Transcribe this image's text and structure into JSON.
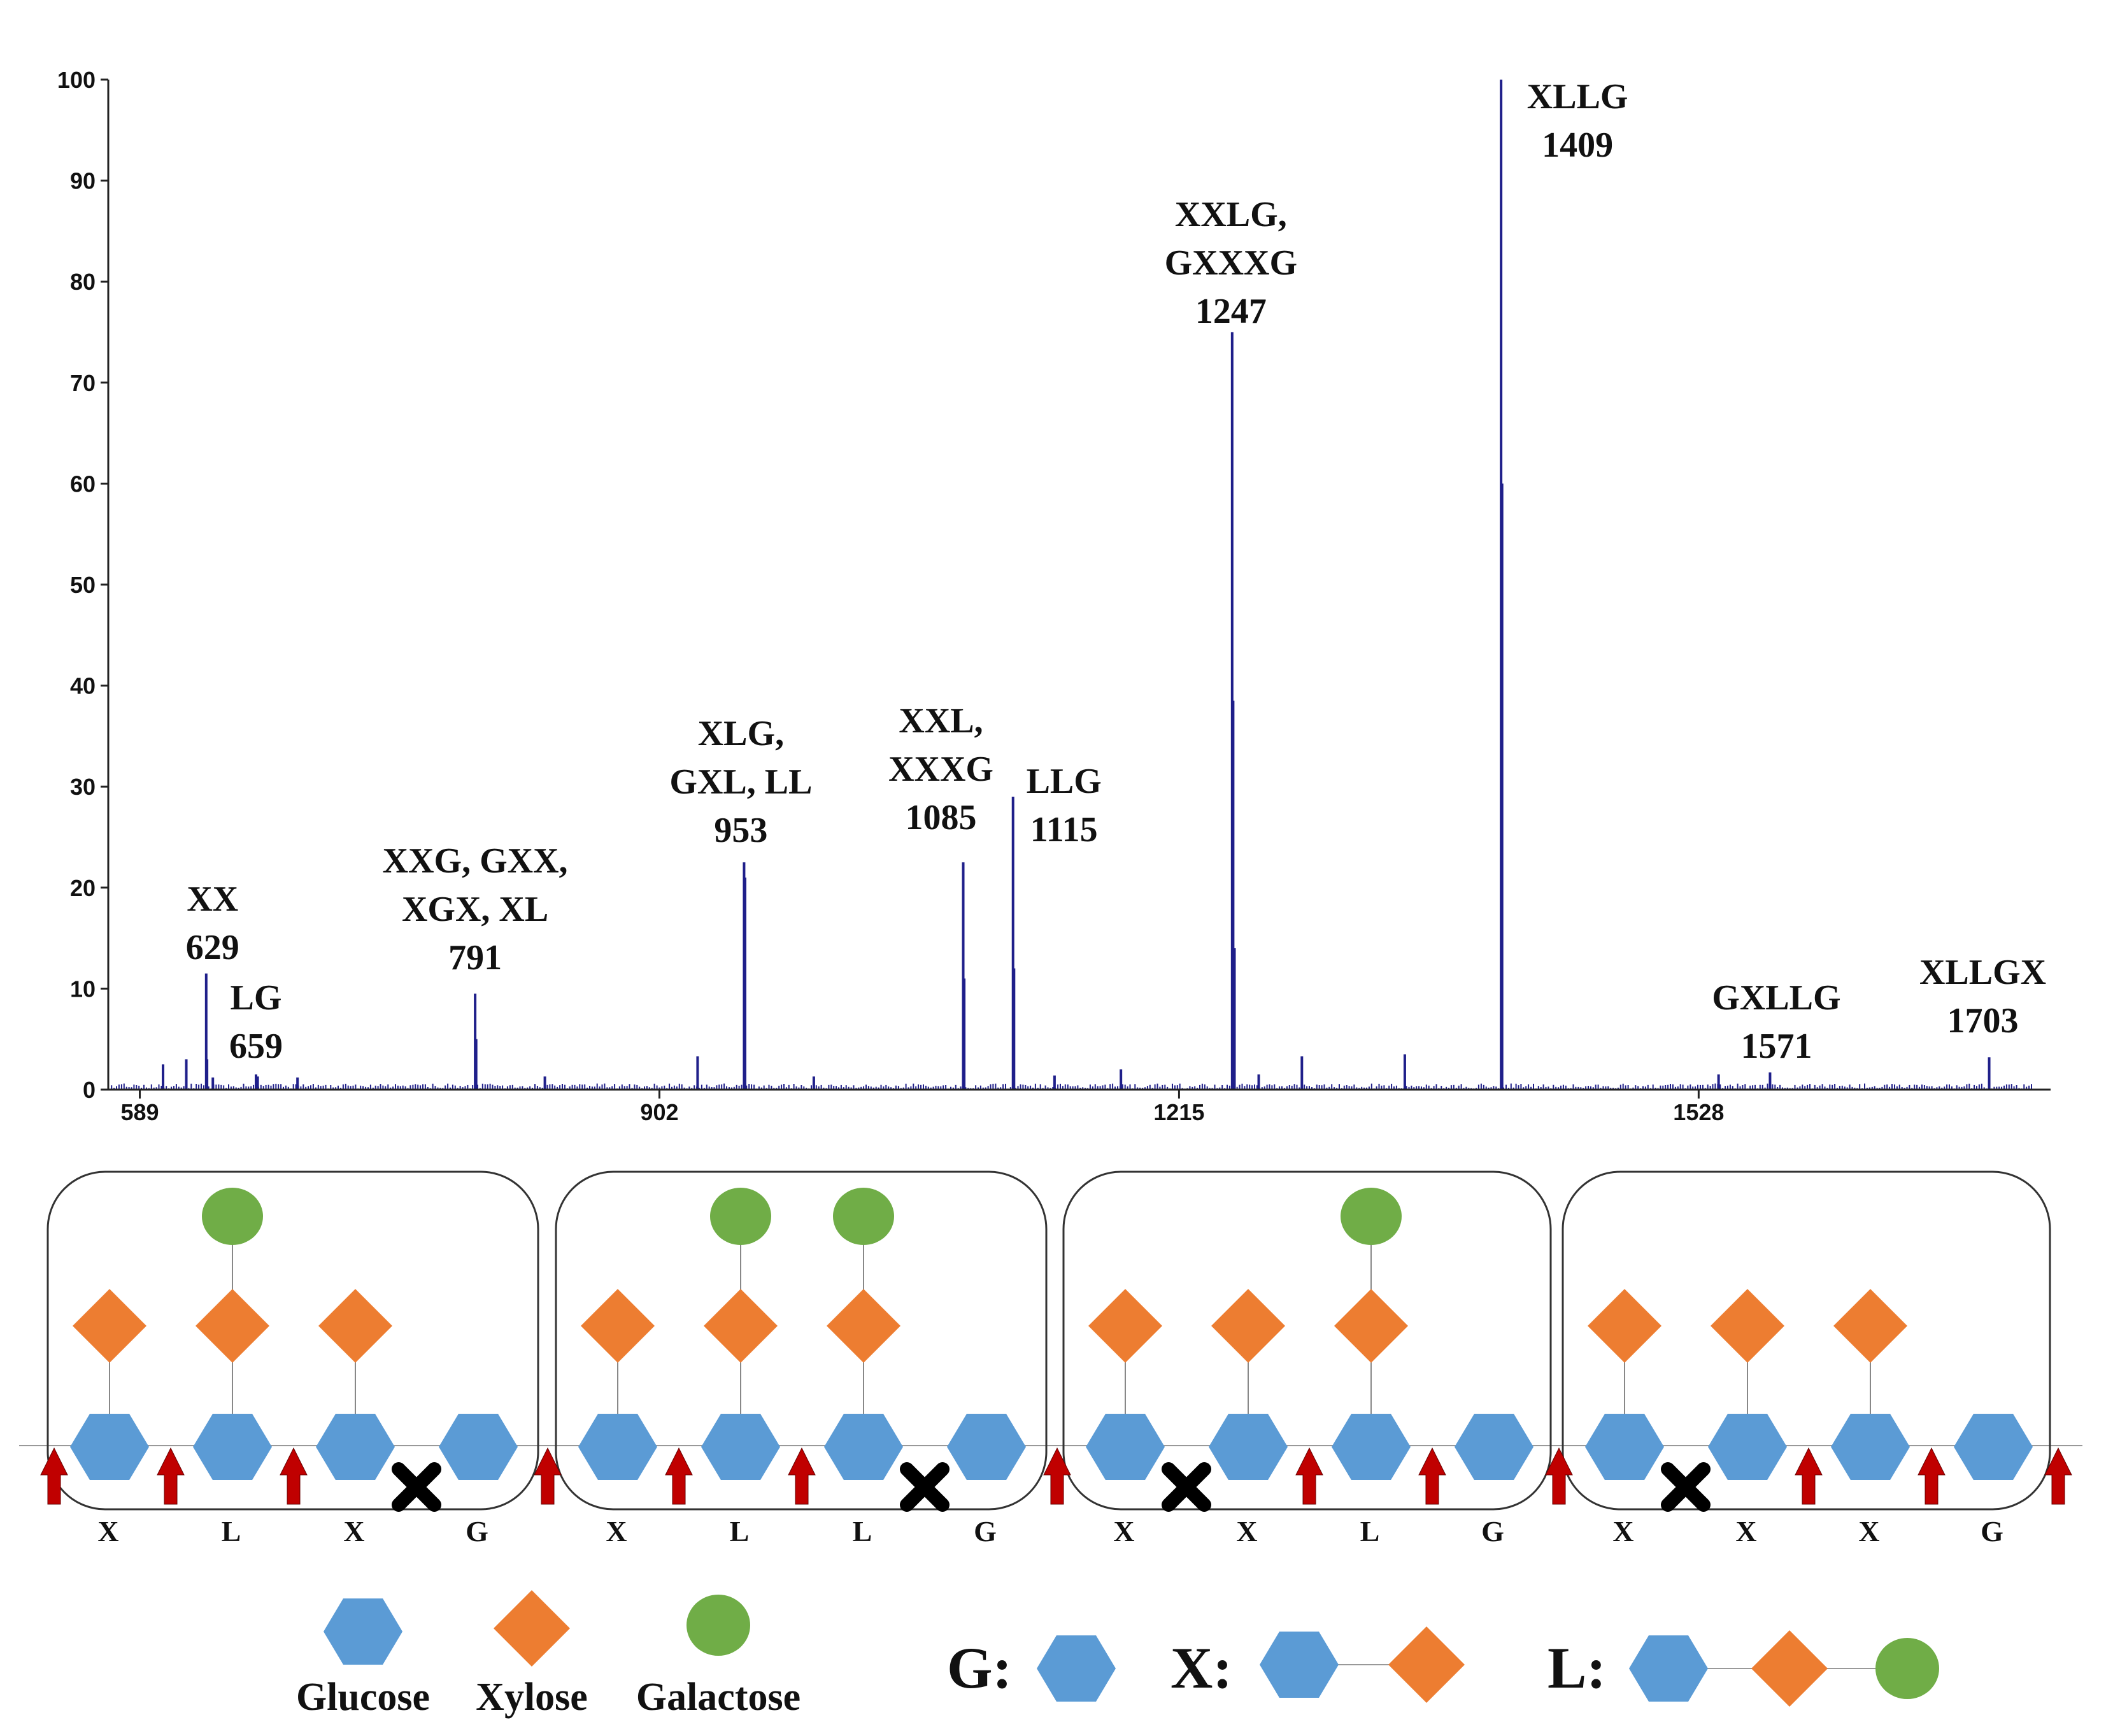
{
  "colors": {
    "spectrum": "#1f1f8a",
    "glucose": "#5b9bd5",
    "xylose": "#ed7d31",
    "galactose": "#70ad47",
    "cleavage_arrow": "#c00000",
    "blocked": "#000000"
  },
  "chart_data": {
    "type": "mass-spectrum",
    "xlim": [
      570,
      1740
    ],
    "ylim": [
      0,
      100
    ],
    "x_ticks": [
      "589",
      "902",
      "1215",
      "1528"
    ],
    "y_ticks": [
      "0",
      "10",
      "20",
      "30",
      "40",
      "50",
      "60",
      "70",
      "80",
      "90",
      "100"
    ],
    "peaks": [
      {
        "mz": 629,
        "intensity": 11.5
      },
      {
        "mz": 629.5,
        "intensity": 3
      },
      {
        "mz": 659,
        "intensity": 1.5
      },
      {
        "mz": 791,
        "intensity": 9.5
      },
      {
        "mz": 791.6,
        "intensity": 5
      },
      {
        "mz": 953,
        "intensity": 22.5
      },
      {
        "mz": 953.6,
        "intensity": 21
      },
      {
        "mz": 1085,
        "intensity": 22.5
      },
      {
        "mz": 1085.6,
        "intensity": 11
      },
      {
        "mz": 1115,
        "intensity": 29
      },
      {
        "mz": 1115.6,
        "intensity": 12
      },
      {
        "mz": 1247,
        "intensity": 75
      },
      {
        "mz": 1247.6,
        "intensity": 38.5
      },
      {
        "mz": 1248.4,
        "intensity": 14
      },
      {
        "mz": 1409,
        "intensity": 100
      },
      {
        "mz": 1409.6,
        "intensity": 60
      },
      {
        "mz": 1571,
        "intensity": 1.7
      },
      {
        "mz": 1703,
        "intensity": 3.2
      },
      {
        "mz": 603,
        "intensity": 2.5
      },
      {
        "mz": 617,
        "intensity": 3
      },
      {
        "mz": 633,
        "intensity": 1.2
      },
      {
        "mz": 660,
        "intensity": 1.3
      },
      {
        "mz": 684,
        "intensity": 1.2
      },
      {
        "mz": 833,
        "intensity": 1.3
      },
      {
        "mz": 925,
        "intensity": 3.3
      },
      {
        "mz": 995,
        "intensity": 1.3
      },
      {
        "mz": 1140,
        "intensity": 1.4
      },
      {
        "mz": 1180,
        "intensity": 2
      },
      {
        "mz": 1289,
        "intensity": 3.3
      },
      {
        "mz": 1351,
        "intensity": 3.5
      },
      {
        "mz": 1540,
        "intensity": 1.5
      },
      {
        "mz": 1263,
        "intensity": 1.5
      }
    ],
    "annotations": [
      {
        "mz": 629,
        "lines": [
          "XX",
          "629"
        ]
      },
      {
        "mz": 659,
        "lines": [
          "LG",
          "659"
        ]
      },
      {
        "mz": 791,
        "lines": [
          "XXG, GXX,",
          "XGX, XL",
          "791"
        ]
      },
      {
        "mz": 953,
        "lines": [
          "XLG,",
          "GXL, LL",
          "953"
        ]
      },
      {
        "mz": 1085,
        "lines": [
          "XXL,",
          "XXXG",
          "1085"
        ]
      },
      {
        "mz": 1115,
        "lines": [
          "LLG",
          "1115"
        ]
      },
      {
        "mz": 1247,
        "lines": [
          "XXLG,",
          "GXXXG",
          "1247"
        ]
      },
      {
        "mz": 1409,
        "lines": [
          "XLLG",
          "1409"
        ]
      },
      {
        "mz": 1571,
        "lines": [
          "GXLLG",
          "1571"
        ]
      },
      {
        "mz": 1703,
        "lines": [
          "XLLGX",
          "1703"
        ]
      }
    ]
  },
  "diagram": {
    "units": [
      {
        "labels": [
          "X",
          "L",
          "X",
          "G"
        ],
        "galactose": [
          false,
          true,
          false,
          false
        ],
        "blocked_gap": 2
      },
      {
        "labels": [
          "X",
          "L",
          "L",
          "G"
        ],
        "galactose": [
          false,
          true,
          true,
          false
        ],
        "blocked_gap": 2
      },
      {
        "labels": [
          "X",
          "X",
          "L",
          "G"
        ],
        "galactose": [
          false,
          false,
          true,
          false
        ],
        "blocked_gap": 0
      },
      {
        "labels": [
          "X",
          "X",
          "X",
          "G"
        ],
        "galactose": [
          false,
          false,
          false,
          false
        ],
        "blocked_gap": 0
      }
    ]
  },
  "legend": {
    "sugars": [
      "Glucose",
      "Xylose",
      "Galactose"
    ],
    "key": {
      "g": "G:",
      "x": "X:",
      "l": "L:"
    }
  }
}
